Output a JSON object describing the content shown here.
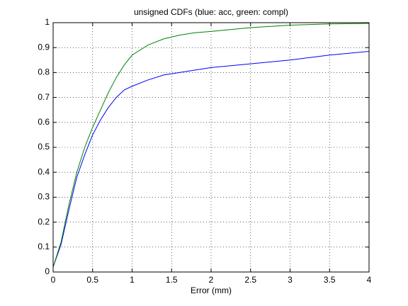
{
  "chart_data": {
    "type": "line",
    "title": "unsigned CDFs (blue: acc, green: compl)",
    "x_label": "Error (mm)",
    "x": [
      0,
      0.1,
      0.2,
      0.3,
      0.4,
      0.5,
      0.6,
      0.7,
      0.8,
      0.9,
      1.0,
      1.2,
      1.4,
      1.6,
      1.8,
      2.0,
      2.5,
      3.0,
      3.5,
      4.0
    ],
    "series": [
      {
        "color": "#0000ff",
        "values": [
          0.02,
          0.11,
          0.25,
          0.38,
          0.47,
          0.55,
          0.61,
          0.66,
          0.7,
          0.73,
          0.745,
          0.77,
          0.79,
          0.8,
          0.81,
          0.82,
          0.835,
          0.85,
          0.87,
          0.885
        ]
      },
      {
        "color": "#008000",
        "values": [
          0.02,
          0.12,
          0.27,
          0.4,
          0.5,
          0.58,
          0.65,
          0.72,
          0.78,
          0.83,
          0.87,
          0.91,
          0.935,
          0.95,
          0.96,
          0.965,
          0.98,
          0.99,
          0.995,
          0.997
        ]
      }
    ],
    "xlim": [
      0,
      4
    ],
    "ylim": [
      0,
      1
    ],
    "xticks": [
      0,
      0.5,
      1,
      1.5,
      2,
      2.5,
      3,
      3.5,
      4
    ],
    "yticks": [
      0,
      0.1,
      0.2,
      0.3,
      0.4,
      0.5,
      0.6,
      0.7,
      0.8,
      0.9,
      1
    ],
    "grid": true
  }
}
